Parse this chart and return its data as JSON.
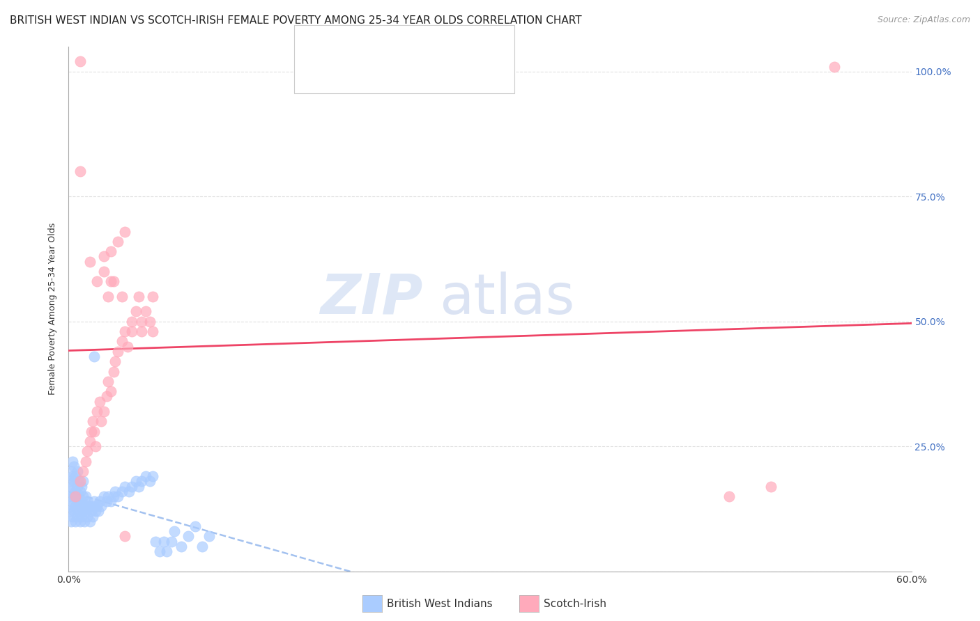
{
  "title": "BRITISH WEST INDIAN VS SCOTCH-IRISH FEMALE POVERTY AMONG 25-34 YEAR OLDS CORRELATION CHART",
  "source": "Source: ZipAtlas.com",
  "ylabel": "Female Poverty Among 25-34 Year Olds",
  "xlim": [
    0.0,
    0.6
  ],
  "ylim": [
    0.0,
    1.05
  ],
  "xticks": [
    0.0,
    0.1,
    0.2,
    0.3,
    0.4,
    0.5,
    0.6
  ],
  "xticklabels": [
    "0.0%",
    "",
    "",
    "",
    "",
    "",
    "60.0%"
  ],
  "yticks": [
    0.0,
    0.25,
    0.5,
    0.75,
    1.0
  ],
  "yticklabels_right": [
    "",
    "25.0%",
    "50.0%",
    "75.0%",
    "100.0%"
  ],
  "color_bwi": "#aaccff",
  "color_si": "#ffaabb",
  "color_line_bwi": "#99bbee",
  "color_line_si": "#ee4466",
  "watermark_zip": "ZIP",
  "watermark_atlas": "atlas",
  "background_color": "#ffffff",
  "grid_color": "#e0e0e0",
  "title_fontsize": 11,
  "axis_label_fontsize": 9,
  "tick_fontsize": 10,
  "bwi_x": [
    0.001,
    0.001,
    0.001,
    0.002,
    0.002,
    0.002,
    0.002,
    0.003,
    0.003,
    0.003,
    0.003,
    0.003,
    0.004,
    0.004,
    0.004,
    0.004,
    0.005,
    0.005,
    0.005,
    0.005,
    0.006,
    0.006,
    0.006,
    0.006,
    0.007,
    0.007,
    0.007,
    0.008,
    0.008,
    0.008,
    0.009,
    0.009,
    0.009,
    0.01,
    0.01,
    0.01,
    0.011,
    0.011,
    0.012,
    0.012,
    0.013,
    0.013,
    0.014,
    0.015,
    0.015,
    0.016,
    0.017,
    0.018,
    0.018,
    0.019,
    0.02,
    0.021,
    0.022,
    0.023,
    0.025,
    0.027,
    0.028,
    0.03,
    0.032,
    0.033,
    0.035,
    0.038,
    0.04,
    0.043,
    0.045,
    0.048,
    0.05,
    0.052,
    0.055,
    0.058,
    0.06,
    0.062,
    0.065,
    0.068,
    0.07,
    0.073,
    0.075,
    0.08,
    0.085,
    0.09,
    0.095,
    0.1,
    0.018
  ],
  "bwi_y": [
    0.12,
    0.15,
    0.18,
    0.1,
    0.13,
    0.16,
    0.2,
    0.11,
    0.14,
    0.17,
    0.19,
    0.22,
    0.12,
    0.15,
    0.18,
    0.21,
    0.1,
    0.13,
    0.16,
    0.19,
    0.11,
    0.14,
    0.17,
    0.2,
    0.12,
    0.15,
    0.18,
    0.1,
    0.13,
    0.16,
    0.11,
    0.14,
    0.17,
    0.12,
    0.15,
    0.18,
    0.1,
    0.13,
    0.12,
    0.15,
    0.11,
    0.14,
    0.13,
    0.1,
    0.13,
    0.12,
    0.11,
    0.14,
    0.13,
    0.12,
    0.13,
    0.12,
    0.14,
    0.13,
    0.15,
    0.14,
    0.15,
    0.14,
    0.15,
    0.16,
    0.15,
    0.16,
    0.17,
    0.16,
    0.17,
    0.18,
    0.17,
    0.18,
    0.19,
    0.18,
    0.19,
    0.06,
    0.04,
    0.06,
    0.04,
    0.06,
    0.08,
    0.05,
    0.07,
    0.09,
    0.05,
    0.07,
    0.43
  ],
  "si_x": [
    0.005,
    0.008,
    0.01,
    0.012,
    0.013,
    0.015,
    0.016,
    0.017,
    0.018,
    0.019,
    0.02,
    0.022,
    0.023,
    0.025,
    0.027,
    0.028,
    0.03,
    0.032,
    0.033,
    0.035,
    0.038,
    0.04,
    0.042,
    0.045,
    0.048,
    0.05,
    0.052,
    0.055,
    0.058,
    0.06,
    0.008,
    0.015,
    0.02,
    0.025,
    0.03,
    0.035,
    0.04,
    0.028,
    0.032,
    0.038,
    0.045,
    0.052,
    0.06,
    0.025,
    0.03,
    0.47,
    0.5,
    0.545,
    0.008,
    0.04
  ],
  "si_y": [
    0.15,
    0.18,
    0.2,
    0.22,
    0.24,
    0.26,
    0.28,
    0.3,
    0.28,
    0.25,
    0.32,
    0.34,
    0.3,
    0.32,
    0.35,
    0.38,
    0.36,
    0.4,
    0.42,
    0.44,
    0.46,
    0.48,
    0.45,
    0.5,
    0.52,
    0.55,
    0.48,
    0.52,
    0.5,
    0.55,
    0.8,
    0.62,
    0.58,
    0.6,
    0.64,
    0.66,
    0.68,
    0.55,
    0.58,
    0.55,
    0.48,
    0.5,
    0.48,
    0.63,
    0.58,
    0.15,
    0.17,
    1.01,
    1.02,
    0.07
  ]
}
